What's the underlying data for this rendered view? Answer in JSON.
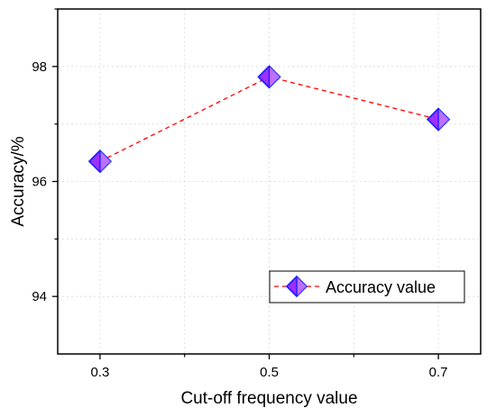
{
  "chart_data": {
    "type": "line",
    "title": "",
    "xlabel": "Cut-off frequency value",
    "ylabel": "Accuracy/%",
    "x_ticks": [
      "0.3",
      "0.5",
      "0.7"
    ],
    "y_ticks": [
      "94",
      "96",
      "98"
    ],
    "xlim": [
      0.25,
      0.75
    ],
    "ylim": [
      93.0,
      99.0
    ],
    "grid": true,
    "legend_position": "bottom-right",
    "series": [
      {
        "name": "Accuracy value",
        "x": [
          0.3,
          0.5,
          0.7
        ],
        "y": [
          96.35,
          97.82,
          97.08
        ],
        "line_color": "#ff0000",
        "line_style": "dashed",
        "marker": "diamond",
        "marker_fill": "#9b30ff",
        "marker_edge": "#1a1aff"
      }
    ]
  }
}
